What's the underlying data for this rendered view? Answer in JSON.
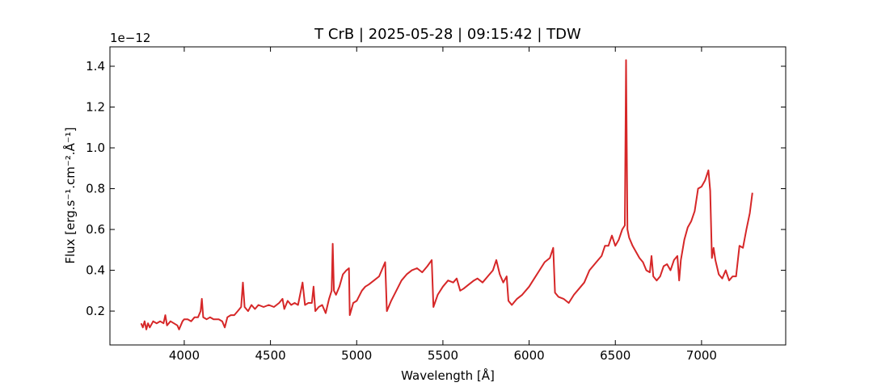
{
  "chart_data": {
    "type": "line",
    "title": "T CrB | 2025-05-28 | 09:15:42 | TDW",
    "x_label": "Wavelength [Å]",
    "y_label": "Flux [erg.s⁻¹.cm⁻².Å⁻¹]",
    "y_offset_text": "1e−12",
    "xlim": [
      3569,
      7488
    ],
    "ylim": [
      0.034,
      1.495
    ],
    "xticks": [
      4000,
      4500,
      5000,
      5500,
      6000,
      6500,
      7000
    ],
    "yticks": [
      0.2,
      0.4,
      0.6,
      0.8,
      {
        "value": 1,
        "label": "1.0"
      },
      1.2,
      1.4
    ],
    "series": [
      {
        "color": "#d62728",
        "x": [
          3750,
          3760,
          3770,
          3780,
          3790,
          3800,
          3820,
          3840,
          3860,
          3880,
          3890,
          3900,
          3920,
          3940,
          3960,
          3970,
          3990,
          4000,
          4020,
          4040,
          4060,
          4080,
          4095,
          4102,
          4110,
          4130,
          4150,
          4170,
          4200,
          4220,
          4235,
          4250,
          4270,
          4290,
          4310,
          4330,
          4340,
          4350,
          4370,
          4390,
          4410,
          4430,
          4460,
          4490,
          4520,
          4550,
          4570,
          4580,
          4600,
          4620,
          4640,
          4660,
          4686,
          4700,
          4720,
          4740,
          4750,
          4760,
          4780,
          4800,
          4820,
          4840,
          4855,
          4861,
          4868,
          4880,
          4900,
          4920,
          4940,
          4955,
          4960,
          4980,
          5000,
          5030,
          5050,
          5070,
          5100,
          5130,
          5150,
          5165,
          5175,
          5200,
          5230,
          5260,
          5290,
          5320,
          5350,
          5380,
          5410,
          5435,
          5445,
          5470,
          5500,
          5530,
          5560,
          5580,
          5600,
          5620,
          5650,
          5680,
          5700,
          5730,
          5760,
          5790,
          5810,
          5830,
          5850,
          5870,
          5880,
          5900,
          5930,
          5960,
          6000,
          6030,
          6060,
          6090,
          6120,
          6140,
          6150,
          6170,
          6200,
          6230,
          6260,
          6290,
          6320,
          6350,
          6380,
          6400,
          6420,
          6440,
          6460,
          6480,
          6500,
          6520,
          6540,
          6555,
          6562,
          6570,
          6580,
          6600,
          6620,
          6640,
          6660,
          6680,
          6700,
          6710,
          6720,
          6740,
          6760,
          6780,
          6800,
          6820,
          6840,
          6860,
          6870,
          6880,
          6900,
          6920,
          6940,
          6960,
          6980,
          7000,
          7020,
          7040,
          7050,
          7060,
          7070,
          7080,
          7100,
          7120,
          7140,
          7160,
          7180,
          7200,
          7220,
          7240,
          7260,
          7280,
          7295
        ],
        "values": [
          0.14,
          0.12,
          0.15,
          0.11,
          0.14,
          0.12,
          0.15,
          0.14,
          0.15,
          0.14,
          0.18,
          0.13,
          0.15,
          0.14,
          0.13,
          0.11,
          0.15,
          0.16,
          0.16,
          0.15,
          0.17,
          0.17,
          0.2,
          0.26,
          0.17,
          0.16,
          0.17,
          0.16,
          0.16,
          0.15,
          0.12,
          0.17,
          0.18,
          0.18,
          0.2,
          0.22,
          0.34,
          0.22,
          0.2,
          0.23,
          0.21,
          0.23,
          0.22,
          0.23,
          0.22,
          0.24,
          0.26,
          0.21,
          0.25,
          0.23,
          0.24,
          0.23,
          0.34,
          0.23,
          0.24,
          0.24,
          0.32,
          0.2,
          0.22,
          0.23,
          0.19,
          0.26,
          0.3,
          0.53,
          0.3,
          0.28,
          0.32,
          0.38,
          0.4,
          0.41,
          0.18,
          0.24,
          0.25,
          0.3,
          0.32,
          0.33,
          0.35,
          0.37,
          0.41,
          0.44,
          0.2,
          0.25,
          0.3,
          0.35,
          0.38,
          0.4,
          0.41,
          0.39,
          0.42,
          0.45,
          0.22,
          0.28,
          0.32,
          0.35,
          0.34,
          0.36,
          0.3,
          0.31,
          0.33,
          0.35,
          0.36,
          0.34,
          0.37,
          0.4,
          0.45,
          0.38,
          0.34,
          0.37,
          0.25,
          0.23,
          0.26,
          0.28,
          0.32,
          0.36,
          0.4,
          0.44,
          0.46,
          0.51,
          0.29,
          0.27,
          0.26,
          0.24,
          0.28,
          0.31,
          0.34,
          0.4,
          0.43,
          0.45,
          0.47,
          0.52,
          0.52,
          0.57,
          0.52,
          0.55,
          0.6,
          0.62,
          1.43,
          0.6,
          0.56,
          0.52,
          0.49,
          0.46,
          0.44,
          0.4,
          0.39,
          0.47,
          0.37,
          0.35,
          0.37,
          0.42,
          0.43,
          0.4,
          0.45,
          0.47,
          0.35,
          0.45,
          0.55,
          0.61,
          0.64,
          0.69,
          0.8,
          0.81,
          0.84,
          0.89,
          0.79,
          0.46,
          0.51,
          0.45,
          0.38,
          0.36,
          0.4,
          0.35,
          0.37,
          0.37,
          0.52,
          0.51,
          0.6,
          0.68,
          0.78
        ]
      }
    ]
  }
}
